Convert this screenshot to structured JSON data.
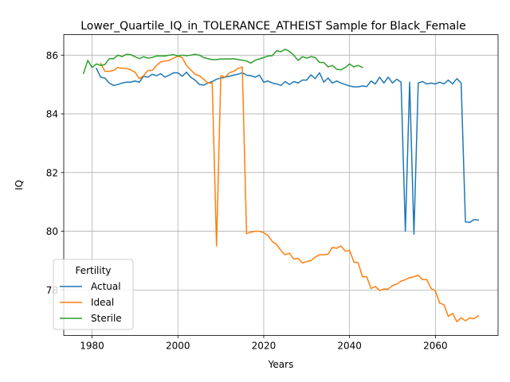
{
  "chart_data": {
    "type": "line",
    "title": "Lower_Quartile_IQ_in_TOLERANCE_ATHEIST Sample for Black_Female",
    "xlabel": "Years",
    "ylabel": "IQ",
    "xlim": [
      1973.4,
      2074.6
    ],
    "ylim": [
      76.45,
      86.7
    ],
    "xticks": [
      1980,
      2000,
      2020,
      2040,
      2060
    ],
    "yticks": [
      78,
      80,
      82,
      84,
      86
    ],
    "grid": true,
    "legend": {
      "title": "Fertility",
      "placement": "lower-left"
    },
    "series": [
      {
        "name": "Actual",
        "color": "#1f77b4",
        "x": [
          1981,
          1982,
          1983,
          1984,
          1985,
          1986,
          1987,
          1988,
          1989,
          1990,
          1991,
          1992,
          1993,
          1994,
          1995,
          1996,
          1997,
          1998,
          1999,
          2000,
          2001,
          2002,
          2003,
          2004,
          2005,
          2006,
          2007,
          2008,
          2009,
          2010,
          2011,
          2012,
          2013,
          2014,
          2015,
          2016,
          2017,
          2018,
          2019,
          2020,
          2021,
          2022,
          2023,
          2024,
          2025,
          2026,
          2027,
          2028,
          2029,
          2030,
          2031,
          2032,
          2033,
          2034,
          2035,
          2036,
          2037,
          2038,
          2039,
          2040,
          2041,
          2042,
          2043,
          2044,
          2045,
          2046,
          2047,
          2048,
          2049,
          2050,
          2051,
          2052,
          2053,
          2054,
          2055,
          2056,
          2057,
          2058,
          2059,
          2060,
          2061,
          2062,
          2063,
          2064,
          2065,
          2066,
          2067,
          2068,
          2069,
          2070
        ],
        "y": [
          85.55,
          85.25,
          85.22,
          85.05,
          84.97,
          85.0,
          85.05,
          85.08,
          85.08,
          85.12,
          85.08,
          85.28,
          85.25,
          85.35,
          85.3,
          85.37,
          85.25,
          85.32,
          85.4,
          85.4,
          85.28,
          85.42,
          85.25,
          85.15,
          85.0,
          84.98,
          85.05,
          85.1,
          85.18,
          85.22,
          85.25,
          85.28,
          85.32,
          85.35,
          85.4,
          85.32,
          85.3,
          85.25,
          85.32,
          85.08,
          85.12,
          85.05,
          85.02,
          84.97,
          85.1,
          85.0,
          85.1,
          85.05,
          85.15,
          85.15,
          85.33,
          85.2,
          85.4,
          85.08,
          85.22,
          85.05,
          85.12,
          85.05,
          85.0,
          84.95,
          84.92,
          84.92,
          84.95,
          84.93,
          85.12,
          85.02,
          85.25,
          85.05,
          85.25,
          85.05,
          85.18,
          85.08,
          80.0,
          85.08,
          79.9,
          85.05,
          85.1,
          85.02,
          85.05,
          85.02,
          85.08,
          85.02,
          85.15,
          85.02,
          85.2,
          85.05,
          80.32,
          80.3,
          80.4,
          80.38
        ]
      },
      {
        "name": "Ideal",
        "color": "#ff7f0e",
        "x": [
          1982,
          1983,
          1984,
          1985,
          1986,
          1987,
          1988,
          1989,
          1990,
          1991,
          1992,
          1993,
          1994,
          1995,
          1996,
          1997,
          1998,
          1999,
          2000,
          2001,
          2002,
          2003,
          2004,
          2005,
          2006,
          2007,
          2008,
          2009,
          2010,
          2011,
          2012,
          2013,
          2014,
          2015,
          2016,
          2017,
          2018,
          2019,
          2020,
          2021,
          2022,
          2023,
          2024,
          2025,
          2026,
          2027,
          2028,
          2029,
          2030,
          2031,
          2032,
          2033,
          2034,
          2035,
          2036,
          2037,
          2038,
          2039,
          2040,
          2041,
          2042,
          2043,
          2044,
          2045,
          2046,
          2047,
          2048,
          2049,
          2050,
          2051,
          2052,
          2053,
          2054,
          2055,
          2056,
          2057,
          2058,
          2059,
          2060,
          2061,
          2062,
          2063,
          2064,
          2065,
          2066,
          2067,
          2068,
          2069,
          2070
        ],
        "y": [
          85.72,
          85.45,
          85.45,
          85.48,
          85.58,
          85.55,
          85.55,
          85.5,
          85.42,
          85.2,
          85.3,
          85.48,
          85.48,
          85.65,
          85.77,
          85.8,
          85.82,
          85.9,
          85.97,
          85.92,
          85.65,
          85.5,
          85.35,
          85.3,
          85.18,
          85.05,
          85.05,
          79.5,
          85.3,
          85.25,
          85.4,
          85.45,
          85.55,
          85.6,
          79.92,
          79.97,
          80.0,
          80.0,
          79.95,
          79.85,
          79.65,
          79.55,
          79.35,
          79.2,
          79.25,
          79.05,
          79.08,
          78.92,
          78.97,
          79.0,
          79.12,
          79.2,
          79.2,
          79.22,
          79.45,
          79.42,
          79.5,
          79.32,
          79.35,
          78.95,
          78.93,
          78.45,
          78.45,
          78.05,
          78.12,
          77.98,
          78.03,
          78.03,
          78.15,
          78.2,
          78.3,
          78.35,
          78.42,
          78.45,
          78.5,
          78.35,
          78.35,
          78.05,
          77.97,
          77.55,
          77.5,
          77.1,
          77.2,
          76.92,
          77.05,
          76.95,
          77.05,
          77.02,
          77.12
        ]
      },
      {
        "name": "Sterile",
        "color": "#2ca02c",
        "x": [
          1978,
          1979,
          1980,
          1981,
          1982,
          1983,
          1984,
          1985,
          1986,
          1987,
          1988,
          1989,
          1990,
          1991,
          1992,
          1993,
          1994,
          1995,
          1996,
          1997,
          1998,
          1999,
          2000,
          2001,
          2002,
          2003,
          2004,
          2005,
          2006,
          2007,
          2008,
          2009,
          2010,
          2011,
          2012,
          2013,
          2014,
          2015,
          2016,
          2017,
          2018,
          2019,
          2020,
          2021,
          2022,
          2023,
          2024,
          2025,
          2026,
          2027,
          2028,
          2029,
          2030,
          2031,
          2032,
          2033,
          2034,
          2035,
          2036,
          2037,
          2038,
          2039,
          2040,
          2041,
          2042,
          2043
        ],
        "y": [
          85.38,
          85.82,
          85.58,
          85.7,
          85.65,
          85.68,
          85.88,
          85.88,
          86.0,
          85.95,
          86.03,
          86.02,
          85.95,
          85.88,
          85.95,
          85.9,
          85.92,
          85.97,
          85.97,
          85.97,
          86.0,
          86.02,
          85.97,
          86.0,
          85.98,
          86.0,
          86.03,
          86.0,
          85.92,
          85.88,
          85.85,
          85.85,
          85.87,
          85.87,
          85.87,
          85.88,
          85.85,
          85.83,
          85.8,
          85.73,
          85.83,
          85.87,
          85.92,
          85.97,
          85.98,
          86.15,
          86.12,
          86.2,
          86.13,
          86.0,
          85.82,
          85.95,
          85.9,
          85.95,
          85.92,
          85.75,
          85.75,
          85.6,
          85.65,
          85.52,
          85.5,
          85.58,
          85.7,
          85.6,
          85.65,
          85.58
        ]
      }
    ]
  }
}
